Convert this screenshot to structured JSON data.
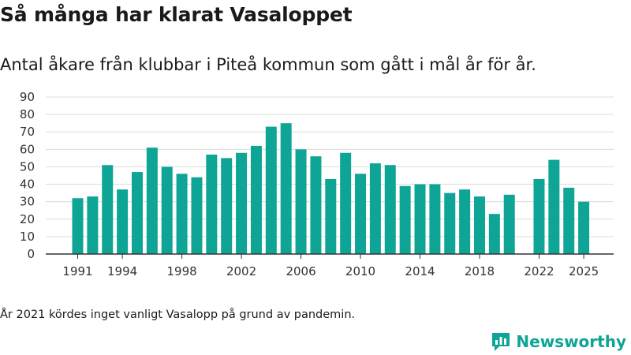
{
  "header": {
    "title": "Så många har klarat Vasaloppet",
    "subtitle": "Antal åkare från klubbar i Piteå kommun som gått i mål år för år."
  },
  "footer": {
    "note": "År 2021 kördes inget vanligt Vasalopp på grund av pandemin.",
    "brand": "Newsworthy"
  },
  "colors": {
    "bar": "#0ea596",
    "brand": "#0ea596",
    "grid": "#dcdcdc",
    "axis": "#333333"
  },
  "chart_data": {
    "type": "bar",
    "title": "Så många har klarat Vasaloppet",
    "xlabel": "",
    "ylabel": "",
    "categories": [
      1991,
      1992,
      1993,
      1994,
      1995,
      1996,
      1997,
      1998,
      1999,
      2000,
      2001,
      2002,
      2003,
      2004,
      2005,
      2006,
      2007,
      2008,
      2009,
      2010,
      2011,
      2012,
      2013,
      2014,
      2015,
      2016,
      2017,
      2018,
      2019,
      2020,
      2021,
      2022,
      2023,
      2024,
      2025
    ],
    "values": [
      32,
      33,
      51,
      37,
      47,
      61,
      50,
      46,
      44,
      57,
      55,
      58,
      62,
      73,
      75,
      60,
      56,
      43,
      58,
      46,
      52,
      51,
      39,
      40,
      40,
      35,
      37,
      33,
      23,
      34,
      null,
      43,
      54,
      38,
      30
    ],
    "ylim": [
      0,
      90
    ],
    "yticks": [
      0,
      10,
      20,
      30,
      40,
      50,
      60,
      70,
      80,
      90
    ],
    "xticks": [
      1991,
      1994,
      1998,
      2002,
      2006,
      2010,
      2014,
      2018,
      2022,
      2025
    ],
    "grid": true
  }
}
